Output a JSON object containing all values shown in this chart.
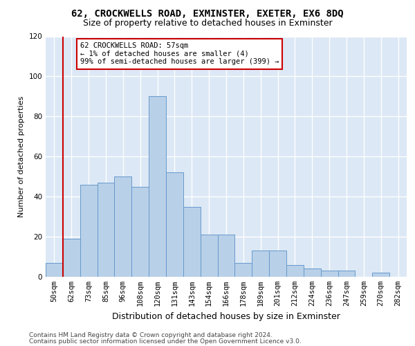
{
  "title": "62, CROCKWELLS ROAD, EXMINSTER, EXETER, EX6 8DQ",
  "subtitle": "Size of property relative to detached houses in Exminster",
  "xlabel": "Distribution of detached houses by size in Exminster",
  "ylabel": "Number of detached properties",
  "bar_labels": [
    "50sqm",
    "62sqm",
    "73sqm",
    "85sqm",
    "96sqm",
    "108sqm",
    "120sqm",
    "131sqm",
    "143sqm",
    "154sqm",
    "166sqm",
    "178sqm",
    "189sqm",
    "201sqm",
    "212sqm",
    "224sqm",
    "236sqm",
    "247sqm",
    "259sqm",
    "270sqm",
    "282sqm"
  ],
  "bar_values": [
    7,
    19,
    46,
    47,
    50,
    45,
    90,
    52,
    35,
    21,
    21,
    7,
    13,
    13,
    6,
    4,
    3,
    3,
    0,
    2,
    0
  ],
  "bar_color": "#b8d0e8",
  "bar_edge_color": "#6699cc",
  "highlight_bar_index": 1,
  "highlight_line_color": "#cc0000",
  "ylim": [
    0,
    120
  ],
  "yticks": [
    0,
    20,
    40,
    60,
    80,
    100,
    120
  ],
  "annotation_text": "62 CROCKWELLS ROAD: 57sqm\n← 1% of detached houses are smaller (4)\n99% of semi-detached houses are larger (399) →",
  "annotation_box_color": "#ffffff",
  "annotation_box_edge": "#cc0000",
  "footer_line1": "Contains HM Land Registry data © Crown copyright and database right 2024.",
  "footer_line2": "Contains public sector information licensed under the Open Government Licence v3.0.",
  "bg_color": "#dce8f5",
  "fig_color": "#ffffff",
  "grid_color": "#ffffff",
  "title_fontsize": 10,
  "subtitle_fontsize": 9,
  "xlabel_fontsize": 9,
  "ylabel_fontsize": 8,
  "tick_fontsize": 7.5,
  "annotation_fontsize": 7.5,
  "footer_fontsize": 6.5
}
